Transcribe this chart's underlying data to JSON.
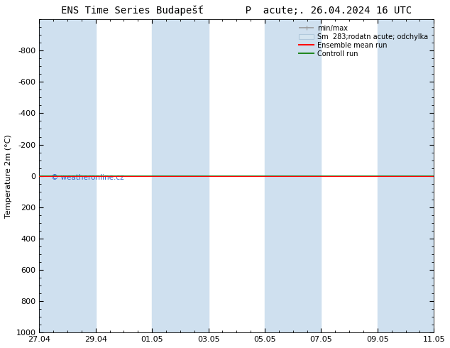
{
  "title": "ENS Time Series Budapešť       P  acute;. 26.04.2024 16 UTC",
  "ylabel": "Temperature 2m (°C)",
  "watermark": "© weatheronline.cz",
  "ylim_bottom": 1000,
  "ylim_top": -1000,
  "yticks": [
    -800,
    -600,
    -400,
    -200,
    0,
    200,
    400,
    600,
    800,
    1000
  ],
  "xtick_labels": [
    "27.04",
    "29.04",
    "01.05",
    "03.05",
    "05.05",
    "07.05",
    "09.05",
    "11.05"
  ],
  "xtick_positions": [
    0,
    2,
    4,
    6,
    8,
    10,
    12,
    14
  ],
  "shaded_bands": [
    [
      0,
      2
    ],
    [
      4,
      6
    ],
    [
      8,
      10
    ],
    [
      12,
      14
    ]
  ],
  "band_color": "#cfe0ef",
  "background_color": "#ffffff",
  "line_y": 0,
  "ensemble_mean_color": "#ff0000",
  "control_run_color": "#228822",
  "minmax_color": "#999999",
  "spread_color": "#c8d8e8",
  "legend_entries": [
    "min/max",
    "Sm  283;rodatn acute; odchylka",
    "Ensemble mean run",
    "Controll run"
  ],
  "title_fontsize": 10,
  "axis_fontsize": 8,
  "tick_fontsize": 8
}
